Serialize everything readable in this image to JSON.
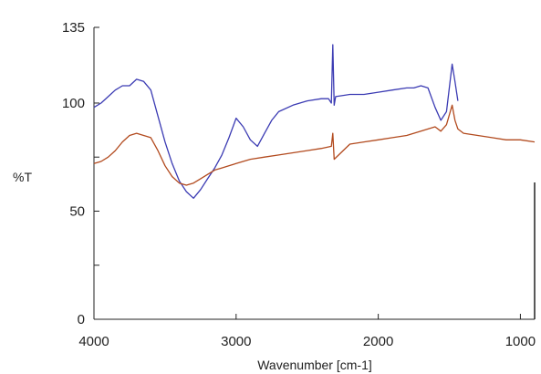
{
  "chart_data": {
    "type": "line",
    "xlabel": "Wavenumber [cm-1]",
    "ylabel": "%T",
    "x_reversed": true,
    "xlim": [
      4000,
      900
    ],
    "ylim": [
      0,
      135
    ],
    "x_ticks": [
      4000,
      3000,
      2000,
      1000
    ],
    "y_ticks": [
      0,
      50,
      100,
      135
    ],
    "grid": false,
    "legend": "none",
    "series": [
      {
        "color": "#3b3bb3",
        "x": [
          4000,
          3950,
          3900,
          3850,
          3800,
          3750,
          3700,
          3650,
          3600,
          3550,
          3500,
          3450,
          3400,
          3350,
          3300,
          3250,
          3200,
          3150,
          3100,
          3050,
          3000,
          2950,
          2900,
          2850,
          2800,
          2750,
          2700,
          2600,
          2500,
          2400,
          2350,
          2330,
          2320,
          2310,
          2300,
          2200,
          2100,
          2000,
          1900,
          1800,
          1750,
          1700,
          1650,
          1600,
          1560,
          1520,
          1480,
          1460,
          1440
        ],
        "y": [
          98,
          100,
          103,
          106,
          108,
          108,
          111,
          110,
          106,
          94,
          82,
          72,
          64,
          59,
          56,
          60,
          65,
          70,
          76,
          84,
          93,
          89,
          83,
          80,
          86,
          92,
          96,
          99,
          101,
          102,
          102,
          100,
          127,
          99,
          103,
          104,
          104,
          105,
          106,
          107,
          107,
          108,
          107,
          98,
          92,
          96,
          118,
          110,
          101
        ]
      },
      {
        "color": "#b24a1e",
        "x": [
          4000,
          3950,
          3900,
          3850,
          3800,
          3750,
          3700,
          3650,
          3600,
          3550,
          3500,
          3450,
          3400,
          3350,
          3300,
          3250,
          3200,
          3150,
          3100,
          3000,
          2900,
          2800,
          2700,
          2600,
          2500,
          2400,
          2330,
          2320,
          2310,
          2200,
          2100,
          2000,
          1900,
          1800,
          1700,
          1650,
          1600,
          1560,
          1520,
          1480,
          1460,
          1440,
          1400,
          1300,
          1200,
          1100,
          1000,
          900
        ],
        "y": [
          72,
          73,
          75,
          78,
          82,
          85,
          86,
          85,
          84,
          78,
          71,
          66,
          63,
          62,
          63,
          65,
          67,
          69,
          70,
          72,
          74,
          75,
          76,
          77,
          78,
          79,
          80,
          86,
          74,
          81,
          82,
          83,
          84,
          85,
          87,
          88,
          89,
          87,
          90,
          99,
          92,
          88,
          86,
          85,
          84,
          83,
          83,
          82
        ]
      }
    ]
  }
}
